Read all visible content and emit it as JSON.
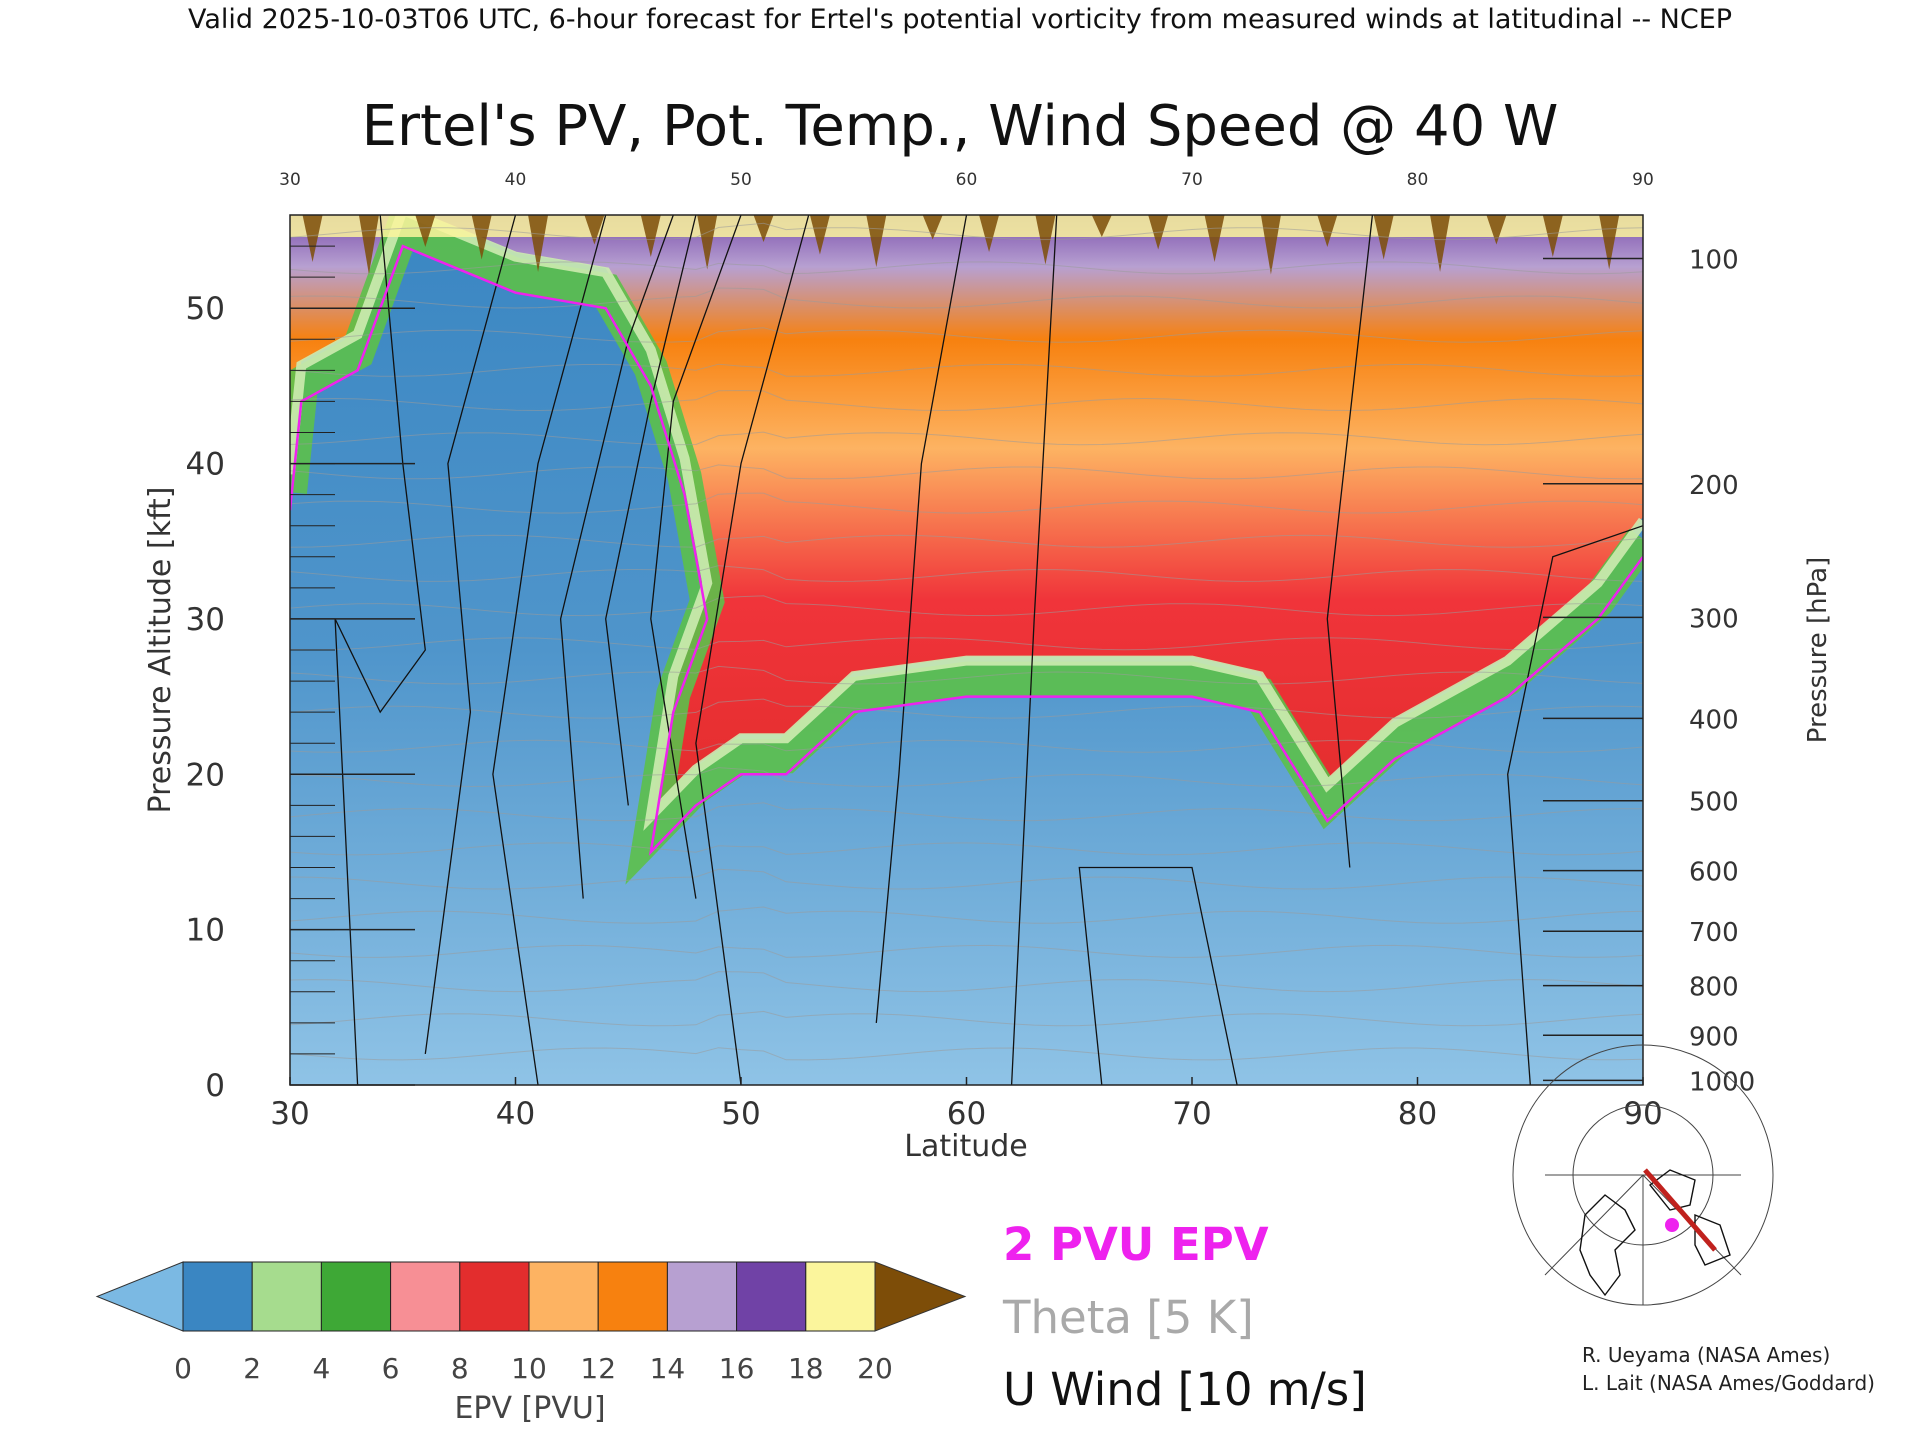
{
  "header": {
    "valid_line": "Valid 2025-10-03T06 UTC, 6-hour forecast for Ertel's potential vorticity from measured winds at latitudinal -- NCEP"
  },
  "chart_data": {
    "type": "heatmap",
    "title": "Ertel's PV, Pot. Temp., Wind Speed @ 40 W",
    "xlabel": "Latitude",
    "ylabel_left": "Pressure Altitude [kft]",
    "ylabel_right": "Pressure [hPa]",
    "xlim": [
      30,
      90
    ],
    "ylim": [
      0,
      56
    ],
    "x_ticks": [
      "30",
      "40",
      "50",
      "60",
      "70",
      "80",
      "90"
    ],
    "y_ticks": [
      "0",
      "10",
      "20",
      "30",
      "40",
      "50"
    ],
    "pressure_ticks": [
      {
        "label": "100",
        "kft": 53.2
      },
      {
        "label": "200",
        "kft": 38.7
      },
      {
        "label": "300",
        "kft": 30.1
      },
      {
        "label": "400",
        "kft": 23.6
      },
      {
        "label": "500",
        "kft": 18.3
      },
      {
        "label": "600",
        "kft": 13.8
      },
      {
        "label": "700",
        "kft": 9.9
      },
      {
        "label": "800",
        "kft": 6.4
      },
      {
        "label": "900",
        "kft": 3.2
      },
      {
        "label": "1000",
        "kft": 0.3
      }
    ],
    "tropopause_2pvu_kft": [
      {
        "lat": 30,
        "kft": 37
      },
      {
        "lat": 30.5,
        "kft": 44
      },
      {
        "lat": 33,
        "kft": 46
      },
      {
        "lat": 35,
        "kft": 54
      },
      {
        "lat": 40,
        "kft": 51
      },
      {
        "lat": 44,
        "kft": 50
      },
      {
        "lat": 46,
        "kft": 45
      },
      {
        "lat": 47.5,
        "kft": 38
      },
      {
        "lat": 48.5,
        "kft": 30
      },
      {
        "lat": 47,
        "kft": 24
      },
      {
        "lat": 46,
        "kft": 15
      },
      {
        "lat": 48,
        "kft": 18
      },
      {
        "lat": 50,
        "kft": 20
      },
      {
        "lat": 52,
        "kft": 20
      },
      {
        "lat": 55,
        "kft": 24
      },
      {
        "lat": 60,
        "kft": 25
      },
      {
        "lat": 70,
        "kft": 25
      },
      {
        "lat": 73,
        "kft": 24
      },
      {
        "lat": 76,
        "kft": 17
      },
      {
        "lat": 79,
        "kft": 21
      },
      {
        "lat": 84,
        "kft": 25
      },
      {
        "lat": 88,
        "kft": 30
      },
      {
        "lat": 90,
        "kft": 34
      }
    ],
    "epv_colorbar": {
      "label": "EPV [PVU]",
      "ticks": [
        "0",
        "2",
        "4",
        "6",
        "8",
        "10",
        "12",
        "14",
        "16",
        "18",
        "20"
      ],
      "colors": [
        "#7bb9e3",
        "#3a86c2",
        "#a6dc8e",
        "#3ea836",
        "#f78f95",
        "#e32d2d",
        "#fdb362",
        "#f7810f",
        "#b7a0d1",
        "#7042a6",
        "#fbf59c",
        "#7d4d08"
      ]
    },
    "legend_entries": [
      {
        "text": "2 PVU EPV",
        "color": "#ee22ee"
      },
      {
        "text": "Theta [5 K]",
        "color": "#a9a9a9"
      },
      {
        "text": "U Wind [10 m/s]",
        "color": "#000000"
      }
    ]
  },
  "credits": {
    "line1": "R. Ueyama (NASA Ames)",
    "line2": "L. Lait (NASA Ames/Goddard)"
  },
  "inset_map": {
    "icon": "polar-map-icon",
    "track_color": "#c0221e",
    "marker_color": "#ee22ee"
  }
}
